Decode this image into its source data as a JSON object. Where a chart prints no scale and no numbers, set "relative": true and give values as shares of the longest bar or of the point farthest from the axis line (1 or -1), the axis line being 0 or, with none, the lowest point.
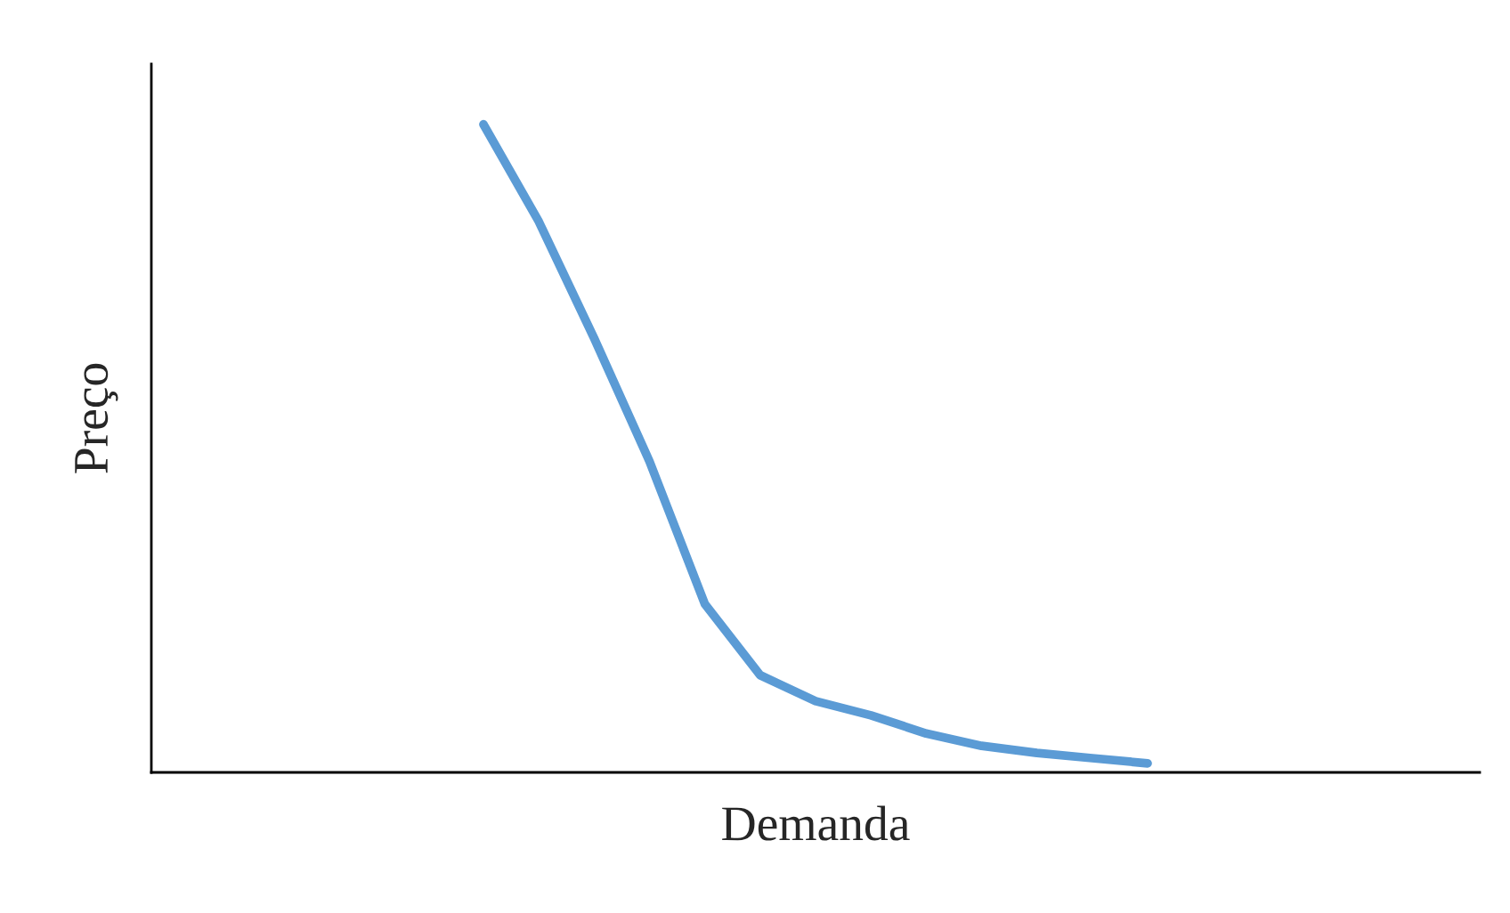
{
  "chart_data": {
    "type": "line",
    "xlabel": "Demanda",
    "ylabel": "Preço",
    "relative": true,
    "grid": false,
    "legend": false,
    "marker": "none",
    "line_style": "solid",
    "categories": [
      null,
      null,
      null,
      null,
      null,
      null,
      null,
      null,
      null,
      null,
      null,
      null,
      null,
      null,
      null,
      null,
      null,
      null,
      null,
      null,
      null,
      null,
      null,
      null,
      null
    ],
    "series": [
      {
        "color": "#5b9bd5",
        "values": [
          null,
          null,
          null,
          null,
          null,
          null,
          1.0,
          0.85,
          0.67,
          0.48,
          0.26,
          0.15,
          0.11,
          0.088,
          0.06,
          0.041,
          0.03,
          0.022,
          0.014,
          null,
          null,
          null,
          null,
          null,
          null
        ]
      }
    ]
  }
}
